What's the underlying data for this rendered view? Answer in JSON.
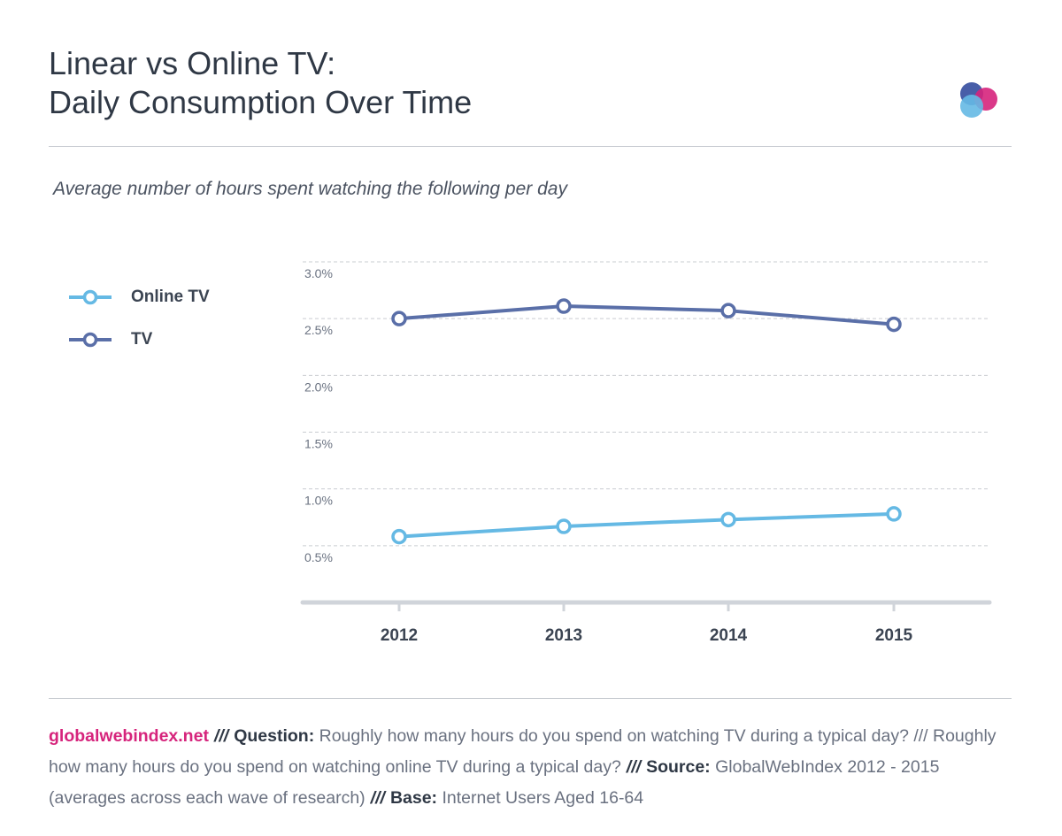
{
  "header": {
    "title_line1": "Linear vs Online TV:",
    "title_line2": "Daily Consumption Over Time",
    "subtitle": "Average number of hours spent watching the following per day"
  },
  "colors": {
    "online_tv": "#65b9e4",
    "tv": "#5a6fa8",
    "brand": "#d6247c",
    "grid": "#c9ccd1",
    "axis": "#d0d4da"
  },
  "chart_data": {
    "type": "line",
    "categories": [
      "2012",
      "2013",
      "2014",
      "2015"
    ],
    "y_ticks": [
      "0.5%",
      "1.0%",
      "1.5%",
      "2.0%",
      "2.5%",
      "3.0%"
    ],
    "ylim": [
      0,
      3.0
    ],
    "series": [
      {
        "name": "Online TV",
        "values": [
          0.58,
          0.67,
          0.73,
          0.78
        ]
      },
      {
        "name": "TV",
        "values": [
          2.5,
          2.61,
          2.57,
          2.45
        ]
      }
    ],
    "grid": true,
    "legend": "left"
  },
  "footer": {
    "brand": "globalwebindex.net",
    "sep": "///",
    "question_label": "Question:",
    "question_text": "Roughly how many hours do you spend on watching TV during a typical day? /// Roughly how many hours do you spend on watching online TV during a typical day?",
    "source_label": "Source:",
    "source_text": "GlobalWebIndex 2012 - 2015 (averages across each wave of research)",
    "base_label": "Base:",
    "base_text": "Internet Users Aged 16-64"
  }
}
